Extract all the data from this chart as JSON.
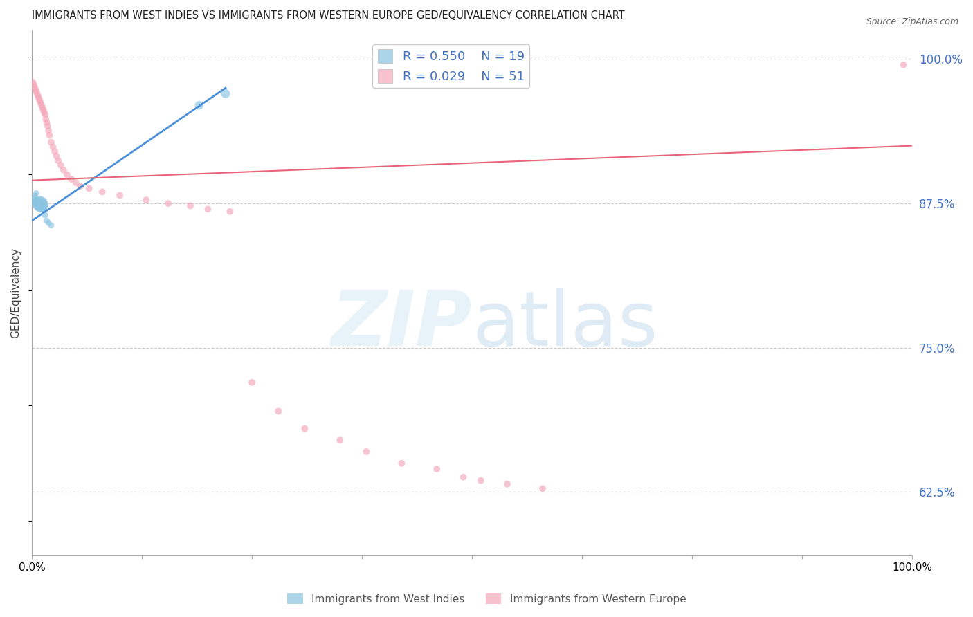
{
  "title": "IMMIGRANTS FROM WEST INDIES VS IMMIGRANTS FROM WESTERN EUROPE GED/EQUIVALENCY CORRELATION CHART",
  "source": "Source: ZipAtlas.com",
  "ylabel": "GED/Equivalency",
  "legend_blue_R": "R = 0.550",
  "legend_blue_N": "N = 19",
  "legend_pink_R": "R = 0.029",
  "legend_pink_N": "N = 51",
  "blue_color": "#89c4e1",
  "pink_color": "#f4a7b9",
  "blue_line_color": "#4a90d9",
  "pink_line_color": "#e8647a",
  "blue_x": [
    0.001,
    0.002,
    0.003,
    0.004,
    0.005,
    0.006,
    0.007,
    0.008,
    0.009,
    0.01,
    0.011,
    0.012,
    0.013,
    0.015,
    0.017,
    0.019,
    0.022,
    0.19,
    0.22
  ],
  "blue_y": [
    0.875,
    0.878,
    0.88,
    0.882,
    0.884,
    0.878,
    0.877,
    0.876,
    0.875,
    0.874,
    0.873,
    0.872,
    0.87,
    0.865,
    0.86,
    0.858,
    0.856,
    0.96,
    0.97
  ],
  "blue_sizes": [
    35,
    35,
    35,
    35,
    35,
    35,
    35,
    80,
    250,
    250,
    180,
    70,
    50,
    45,
    40,
    40,
    40,
    80,
    90
  ],
  "pink_x": [
    0.001,
    0.002,
    0.003,
    0.004,
    0.005,
    0.006,
    0.007,
    0.008,
    0.009,
    0.01,
    0.011,
    0.012,
    0.013,
    0.014,
    0.015,
    0.016,
    0.017,
    0.018,
    0.019,
    0.02,
    0.022,
    0.024,
    0.026,
    0.028,
    0.03,
    0.033,
    0.036,
    0.04,
    0.045,
    0.05,
    0.055,
    0.065,
    0.08,
    0.1,
    0.13,
    0.155,
    0.18,
    0.2,
    0.225,
    0.25,
    0.28,
    0.31,
    0.35,
    0.38,
    0.42,
    0.46,
    0.49,
    0.51,
    0.54,
    0.58,
    0.99
  ],
  "pink_y": [
    0.98,
    0.978,
    0.976,
    0.974,
    0.972,
    0.97,
    0.968,
    0.966,
    0.964,
    0.962,
    0.96,
    0.958,
    0.956,
    0.954,
    0.952,
    0.948,
    0.945,
    0.942,
    0.938,
    0.934,
    0.928,
    0.924,
    0.92,
    0.916,
    0.912,
    0.908,
    0.904,
    0.9,
    0.896,
    0.893,
    0.89,
    0.888,
    0.885,
    0.882,
    0.878,
    0.875,
    0.873,
    0.87,
    0.868,
    0.72,
    0.695,
    0.68,
    0.67,
    0.66,
    0.65,
    0.645,
    0.638,
    0.635,
    0.632,
    0.628,
    0.995
  ],
  "pink_sizes": [
    50,
    50,
    50,
    50,
    50,
    50,
    50,
    50,
    50,
    50,
    50,
    50,
    50,
    50,
    50,
    50,
    50,
    50,
    50,
    50,
    50,
    50,
    50,
    50,
    50,
    50,
    50,
    50,
    50,
    50,
    50,
    50,
    50,
    50,
    50,
    50,
    50,
    50,
    50,
    50,
    50,
    50,
    50,
    50,
    50,
    50,
    50,
    50,
    50,
    50,
    50
  ],
  "blue_trend_x": [
    0.0,
    0.22
  ],
  "blue_trend_y": [
    0.86,
    0.975
  ],
  "pink_trend_x": [
    0.0,
    1.0
  ],
  "pink_trend_y": [
    0.895,
    0.925
  ],
  "xlim": [
    0.0,
    1.0
  ],
  "ylim": [
    0.57,
    1.025
  ],
  "yticks": [
    0.625,
    0.75,
    0.875,
    1.0
  ],
  "xticks": [
    0.0,
    0.125,
    0.25,
    0.375,
    0.5,
    0.625,
    0.75,
    0.875,
    1.0
  ],
  "background_color": "#ffffff",
  "grid_color": "#cccccc",
  "right_label_color": "#4472c4",
  "title_color": "#222222",
  "source_color": "#666666"
}
